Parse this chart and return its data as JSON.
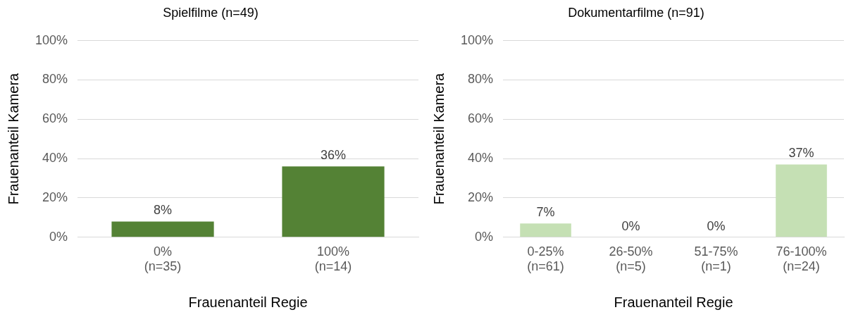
{
  "chart_data": [
    {
      "type": "bar",
      "title": "Spielfilme (n=49)",
      "xlabel": "Frauenanteil Regie",
      "ylabel": "Frauenanteil Kamera",
      "categories": [
        "0%\n(n=35)",
        "100%\n(n=14)"
      ],
      "values": [
        8,
        36
      ],
      "color": "#548235",
      "ylim": [
        0,
        100
      ],
      "yticks": [
        {
          "value": 0,
          "label": "0%"
        },
        {
          "value": 20,
          "label": "20%"
        },
        {
          "value": 40,
          "label": "40%"
        },
        {
          "value": 60,
          "label": "60%"
        },
        {
          "value": 80,
          "label": "80%"
        },
        {
          "value": 100,
          "label": "100%"
        }
      ],
      "grid": "y",
      "value_labels": [
        "8%",
        "36%"
      ]
    },
    {
      "type": "bar",
      "title": "Dokumentarfilme (n=91)",
      "xlabel": "Frauenanteil Regie",
      "ylabel": "Frauenanteil Kamera",
      "categories": [
        "0-25%\n(n=61)",
        "26-50%\n(n=5)",
        "51-75%\n(n=1)",
        "76-100%\n(n=24)"
      ],
      "values": [
        7,
        0,
        0,
        37
      ],
      "color": "#c5e0b4",
      "ylim": [
        0,
        100
      ],
      "yticks": [
        {
          "value": 0,
          "label": "0%"
        },
        {
          "value": 20,
          "label": "20%"
        },
        {
          "value": 40,
          "label": "40%"
        },
        {
          "value": 60,
          "label": "60%"
        },
        {
          "value": 80,
          "label": "80%"
        },
        {
          "value": 100,
          "label": "100%"
        }
      ],
      "grid": "y",
      "value_labels": [
        "7%",
        "0%",
        "0%",
        "37%"
      ]
    }
  ]
}
